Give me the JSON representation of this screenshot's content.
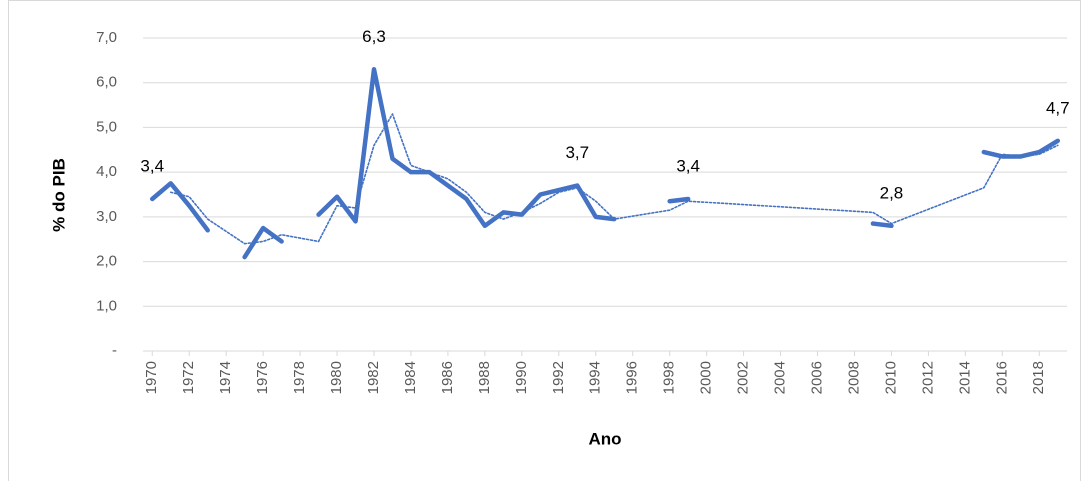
{
  "chart_data": {
    "type": "line",
    "y_label": "% do PIB",
    "x_label": "Ano",
    "x": [
      1970,
      1971,
      1972,
      1973,
      1974,
      1975,
      1976,
      1977,
      1978,
      1979,
      1980,
      1981,
      1982,
      1983,
      1984,
      1985,
      1986,
      1987,
      1988,
      1989,
      1990,
      1991,
      1992,
      1993,
      1994,
      1995,
      1996,
      1997,
      1998,
      1999,
      2000,
      2001,
      2002,
      2003,
      2004,
      2005,
      2006,
      2007,
      2008,
      2009,
      2010,
      2011,
      2012,
      2013,
      2014,
      2015,
      2016,
      2017,
      2018,
      2019
    ],
    "series": [
      {
        "color": "#4472c4",
        "values": [
          3.4,
          3.75,
          3.25,
          2.7,
          null,
          2.1,
          2.75,
          2.45,
          null,
          3.05,
          3.45,
          2.9,
          6.3,
          4.3,
          4.0,
          4.0,
          3.7,
          3.4,
          2.8,
          3.1,
          3.05,
          3.5,
          3.6,
          3.7,
          3.0,
          2.95,
          null,
          null,
          3.35,
          3.4,
          null,
          null,
          null,
          null,
          null,
          null,
          null,
          null,
          null,
          2.85,
          2.8,
          null,
          null,
          null,
          null,
          4.45,
          4.35,
          4.35,
          4.45,
          4.7
        ],
        "value_labels": [
          "3,4",
          null,
          null,
          null,
          null,
          null,
          null,
          null,
          null,
          null,
          null,
          null,
          "6,3",
          null,
          null,
          null,
          null,
          null,
          null,
          null,
          null,
          null,
          null,
          "3,7",
          null,
          null,
          null,
          null,
          null,
          "3,4",
          null,
          null,
          null,
          null,
          null,
          null,
          null,
          null,
          null,
          null,
          "2,8",
          null,
          null,
          null,
          null,
          null,
          null,
          null,
          null,
          "4,7"
        ]
      },
      {
        "color": "#4472c4",
        "style": "dotted",
        "x": [
          1971,
          1972,
          1973,
          1975,
          1976,
          1977,
          1979,
          1980,
          1981,
          1982,
          1983,
          1984,
          1985,
          1986,
          1987,
          1988,
          1989,
          1990,
          1991,
          1992,
          1993,
          1994,
          1995,
          1998,
          1999,
          2009,
          2010,
          2015,
          2016,
          2017,
          2018,
          2019
        ],
        "values": [
          3.55,
          3.45,
          2.95,
          2.4,
          2.45,
          2.6,
          2.45,
          3.25,
          3.2,
          4.6,
          5.3,
          4.15,
          4.0,
          3.85,
          3.55,
          3.1,
          2.95,
          3.1,
          3.3,
          3.55,
          3.65,
          3.35,
          2.95,
          3.15,
          3.35,
          3.1,
          2.85,
          3.65,
          4.4,
          4.35,
          4.4,
          4.6
        ]
      }
    ],
    "xlim": [
      1969.5,
      2019.5
    ],
    "xticks": [
      1970,
      1972,
      1974,
      1976,
      1978,
      1980,
      1982,
      1984,
      1986,
      1988,
      1990,
      1992,
      1994,
      1996,
      1998,
      2000,
      2002,
      2004,
      2006,
      2008,
      2010,
      2012,
      2014,
      2016,
      2018
    ],
    "ylim": [
      0,
      7
    ],
    "yticks": [
      {
        "value": 0,
        "label": "-"
      },
      {
        "value": 1,
        "label": "1,0"
      },
      {
        "value": 2,
        "label": "2,0"
      },
      {
        "value": 3,
        "label": "3,0"
      },
      {
        "value": 4,
        "label": "4,0"
      },
      {
        "value": 5,
        "label": "5,0"
      },
      {
        "value": 6,
        "label": "6,0"
      },
      {
        "value": 7,
        "label": "7,0"
      }
    ],
    "grid": true
  }
}
